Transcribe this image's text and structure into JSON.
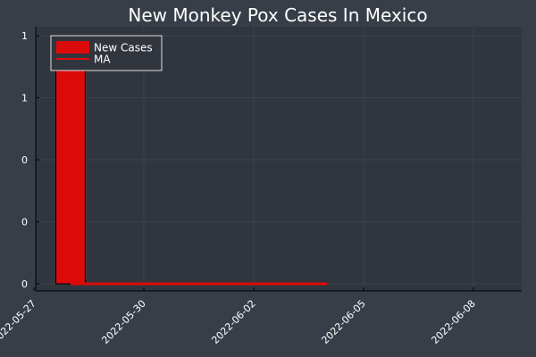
{
  "chart_data": {
    "type": "bar",
    "title": "New Monkey Pox Cases In Mexico",
    "xlabel": "",
    "ylabel": "",
    "x_ticks": [
      "2022-05-27",
      "2022-05-30",
      "2022-06-02",
      "2022-06-05",
      "2022-06-08"
    ],
    "y_tick_labels": [
      "0",
      "0",
      "0",
      "1",
      "1"
    ],
    "ylim": [
      0,
      1
    ],
    "grid": true,
    "legend_position": "top-left",
    "x": [
      "2022-05-28",
      "2022-05-29",
      "2022-05-30",
      "2022-05-31",
      "2022-06-01",
      "2022-06-02",
      "2022-06-03",
      "2022-06-04",
      "2022-06-05",
      "2022-06-06",
      "2022-06-07",
      "2022-06-08",
      "2022-06-09"
    ],
    "series": [
      {
        "name": "New Cases",
        "kind": "bar",
        "color": "#dd0a0a",
        "values": [
          1,
          0,
          0,
          0,
          0,
          0,
          0,
          0,
          0,
          0,
          0,
          0,
          0
        ]
      },
      {
        "name": "MA",
        "kind": "line",
        "color": "#dd0a0a",
        "values": [
          0,
          0,
          0,
          0,
          0,
          0,
          0,
          0,
          null,
          null,
          null,
          null,
          null
        ]
      }
    ]
  }
}
